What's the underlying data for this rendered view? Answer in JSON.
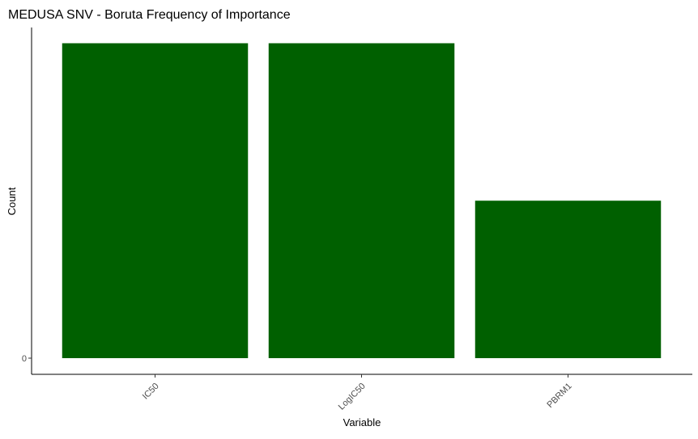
{
  "chart_data": {
    "type": "bar",
    "title": "MEDUSA SNV - Boruta Frequency of Importance",
    "xlabel": "Variable",
    "ylabel": "Count",
    "categories": [
      "IC50",
      "LogIC50",
      "PBRM1"
    ],
    "values": [
      2,
      2,
      1
    ],
    "ylim": [
      0,
      2.1
    ],
    "yticks": [
      0
    ],
    "ytick_labels": [
      "0"
    ],
    "bar_color": "#006000",
    "grid": false,
    "legend": "none",
    "xtick_rotation_deg": -45
  }
}
